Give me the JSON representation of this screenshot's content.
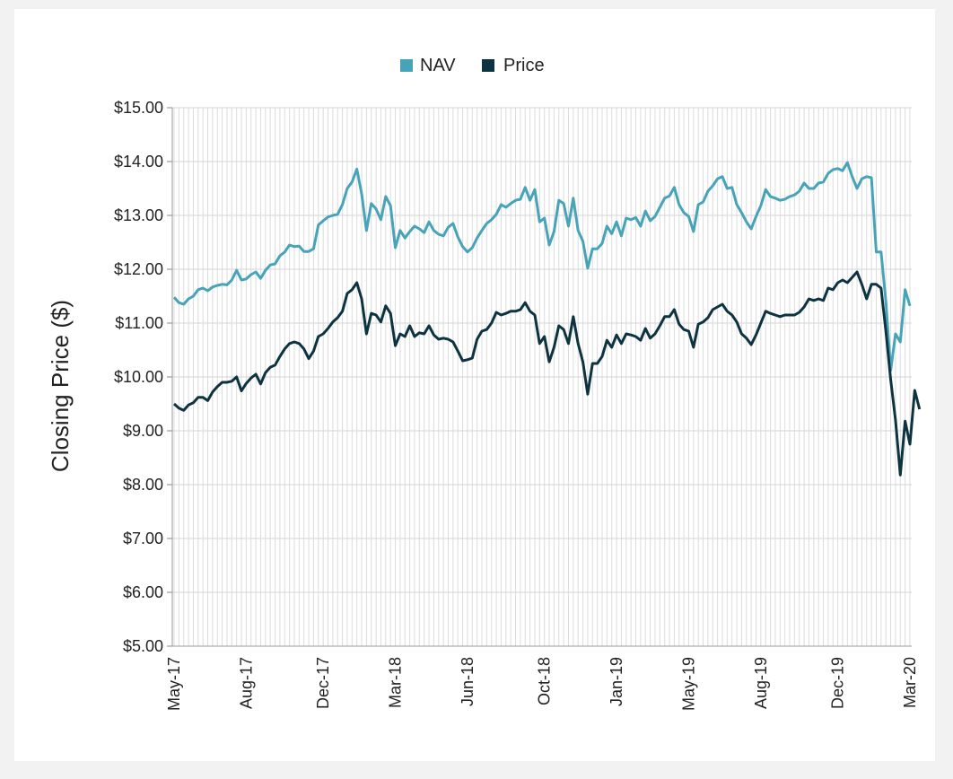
{
  "chart_data": {
    "type": "line",
    "ylabel": "Closing Price ($)",
    "xlabel": "",
    "title": "",
    "ylim": [
      5,
      15
    ],
    "y_ticks": [
      "$5.00",
      "$6.00",
      "$7.00",
      "$8.00",
      "$9.00",
      "$10.00",
      "$11.00",
      "$12.00",
      "$13.00",
      "$14.00",
      "$15.00"
    ],
    "x_tick_labels": [
      "May-17",
      "Aug-17",
      "Dec-17",
      "Mar-18",
      "Jun-18",
      "Oct-18",
      "Jan-19",
      "May-19",
      "Aug-19",
      "Dec-19",
      "Mar-20"
    ],
    "grid": true,
    "legend_position": "top-center",
    "series": [
      {
        "name": "NAV",
        "color": "#46a3b8",
        "values": [
          11.48,
          11.38,
          11.35,
          11.45,
          11.5,
          11.62,
          11.65,
          11.6,
          11.67,
          11.7,
          11.72,
          11.71,
          11.8,
          11.98,
          11.8,
          11.82,
          11.9,
          11.95,
          11.83,
          11.98,
          12.08,
          12.1,
          12.25,
          12.32,
          12.45,
          12.42,
          12.43,
          12.33,
          12.33,
          12.38,
          12.82,
          12.9,
          12.97,
          13.0,
          13.02,
          13.2,
          13.5,
          13.62,
          13.86,
          13.4,
          12.72,
          13.22,
          13.12,
          12.92,
          13.35,
          13.18,
          12.4,
          12.72,
          12.58,
          12.7,
          12.8,
          12.75,
          12.68,
          12.88,
          12.72,
          12.65,
          12.62,
          12.78,
          12.85,
          12.6,
          12.42,
          12.32,
          12.4,
          12.58,
          12.72,
          12.85,
          12.92,
          13.02,
          13.2,
          13.15,
          13.22,
          13.28,
          13.3,
          13.52,
          13.28,
          13.48,
          12.88,
          12.95,
          12.45,
          12.7,
          13.28,
          13.22,
          12.8,
          13.32,
          12.72,
          12.52,
          12.02,
          12.38,
          12.38,
          12.48,
          12.8,
          12.66,
          12.88,
          12.62,
          12.95,
          12.92,
          12.96,
          12.8,
          13.08,
          12.9,
          12.98,
          13.15,
          13.32,
          13.36,
          13.52,
          13.2,
          13.05,
          12.98,
          12.7,
          13.2,
          13.25,
          13.45,
          13.55,
          13.68,
          13.72,
          13.5,
          13.52,
          13.2,
          13.05,
          12.88,
          12.75,
          12.98,
          13.18,
          13.48,
          13.35,
          13.32,
          13.28,
          13.3,
          13.35,
          13.38,
          13.45,
          13.6,
          13.5,
          13.5,
          13.6,
          13.62,
          13.78,
          13.85,
          13.87,
          13.83,
          13.98,
          13.72,
          13.5,
          13.68,
          13.72,
          13.7,
          12.32,
          12.32,
          11.4,
          10.12,
          10.8,
          10.65,
          11.62,
          11.32
        ]
      },
      {
        "name": "Price",
        "color": "#0e3340",
        "values": [
          9.5,
          9.42,
          9.38,
          9.48,
          9.52,
          9.62,
          9.62,
          9.56,
          9.72,
          9.82,
          9.9,
          9.9,
          9.92,
          10.0,
          9.74,
          9.88,
          9.98,
          10.05,
          9.87,
          10.08,
          10.18,
          10.22,
          10.38,
          10.52,
          10.62,
          10.65,
          10.62,
          10.52,
          10.34,
          10.48,
          10.75,
          10.8,
          10.9,
          11.02,
          11.1,
          11.22,
          11.55,
          11.62,
          11.75,
          11.45,
          10.8,
          11.18,
          11.15,
          11.02,
          11.32,
          11.18,
          10.58,
          10.8,
          10.75,
          10.95,
          10.75,
          10.82,
          10.8,
          10.95,
          10.78,
          10.7,
          10.72,
          10.7,
          10.65,
          10.48,
          10.3,
          10.32,
          10.35,
          10.7,
          10.85,
          10.88,
          11.0,
          11.2,
          11.15,
          11.18,
          11.22,
          11.22,
          11.25,
          11.38,
          11.22,
          11.15,
          10.62,
          10.75,
          10.28,
          10.55,
          10.95,
          10.88,
          10.62,
          11.12,
          10.62,
          10.28,
          9.68,
          10.25,
          10.25,
          10.38,
          10.68,
          10.55,
          10.78,
          10.62,
          10.8,
          10.78,
          10.75,
          10.68,
          10.9,
          10.72,
          10.8,
          10.95,
          11.12,
          11.12,
          11.25,
          10.98,
          10.88,
          10.85,
          10.55,
          10.98,
          11.02,
          11.1,
          11.25,
          11.3,
          11.35,
          11.22,
          11.15,
          11.02,
          10.8,
          10.72,
          10.6,
          10.78,
          11.0,
          11.22,
          11.18,
          11.15,
          11.12,
          11.15,
          11.15,
          11.15,
          11.2,
          11.3,
          11.45,
          11.42,
          11.45,
          11.42,
          11.65,
          11.62,
          11.75,
          11.8,
          11.75,
          11.85,
          11.95,
          11.72,
          11.45,
          11.72,
          11.72,
          11.65,
          10.85,
          9.95,
          9.2,
          8.18,
          9.18,
          8.75,
          9.75,
          9.4
        ]
      }
    ]
  }
}
